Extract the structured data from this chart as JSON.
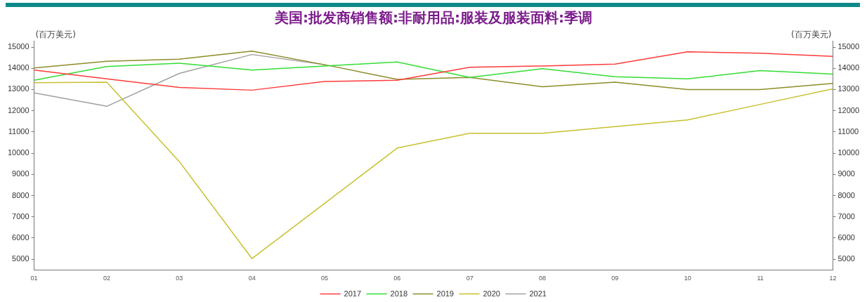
{
  "chart_data": {
    "type": "line",
    "title": "美国:批发商销售额:非耐用品:服装及服装面料:季调",
    "ylabel": "(百万美元)",
    "y2label": "(百万美元)",
    "categories": [
      "01",
      "02",
      "03",
      "04",
      "05",
      "06",
      "07",
      "08",
      "09",
      "10",
      "11",
      "12"
    ],
    "series": [
      {
        "name": "2017",
        "color": "#ff3b3b",
        "values": [
          13920,
          13500,
          13100,
          12970,
          13380,
          13440,
          14050,
          14110,
          14200,
          14780,
          14710,
          14560
        ]
      },
      {
        "name": "2018",
        "color": "#33dd33",
        "values": [
          13440,
          14080,
          14240,
          13920,
          14110,
          14300,
          13570,
          13980,
          13600,
          13500,
          13890,
          13730
        ]
      },
      {
        "name": "2019",
        "color": "#8c8c2a",
        "values": [
          14020,
          14330,
          14430,
          14810,
          14170,
          13480,
          13570,
          13130,
          13350,
          13000,
          13000,
          13290
        ]
      },
      {
        "name": "2020",
        "color": "#c8c030",
        "values": [
          13320,
          13350,
          9600,
          5030,
          7630,
          10240,
          10940,
          10940,
          11250,
          11570,
          12300,
          13030
        ]
      },
      {
        "name": "2021",
        "color": "#a0a0a0",
        "values": [
          12840,
          12210,
          13760,
          14650,
          14170,
          null,
          null,
          null,
          null,
          null,
          null,
          null
        ]
      }
    ],
    "ylim": [
      4500,
      15300
    ],
    "yticks": [
      5000,
      6000,
      7000,
      8000,
      9000,
      10000,
      11000,
      12000,
      13000,
      14000,
      15000
    ],
    "y2lim": [
      4500,
      15300
    ],
    "y2ticks": [
      5000,
      6000,
      7000,
      8000,
      9000,
      10000,
      11000,
      12000,
      13000,
      14000,
      15000
    ],
    "grid": false,
    "legend": "bottom",
    "marker": "none",
    "line_style": "solid"
  }
}
